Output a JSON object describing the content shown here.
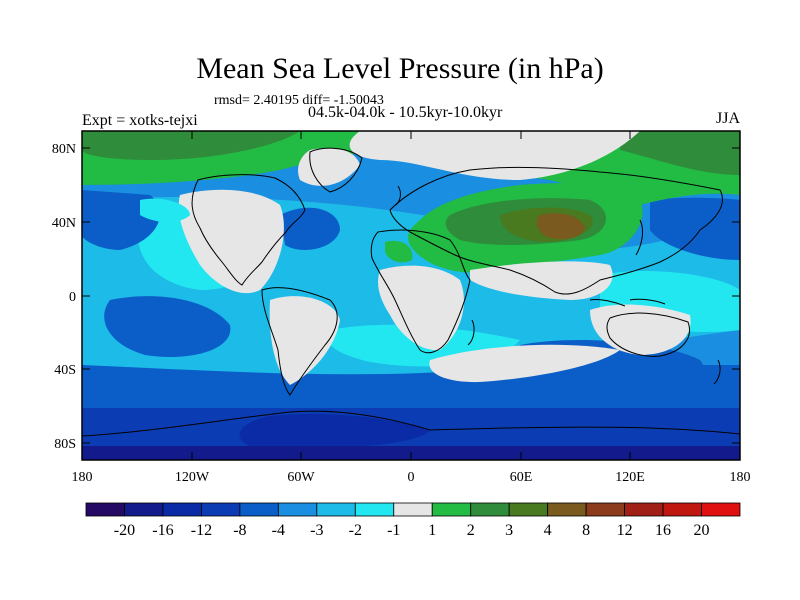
{
  "title": "Mean Sea Level Pressure (in hPa)",
  "stats_line": "rmsd= 2.40195 diff= -1.50043",
  "period_line": "04.5k-04.0k - 10.5kyr-10.0kyr",
  "expt_line": "Expt = xotks-tejxi",
  "season": "JJA",
  "lat_ticks": [
    "80N",
    "40N",
    "0",
    "40S",
    "80S"
  ],
  "lon_ticks": [
    "180",
    "120W",
    "60W",
    "0",
    "60E",
    "120E",
    "180"
  ],
  "colorbar": {
    "labels": [
      "-20",
      "-16",
      "-12",
      "-8",
      "-4",
      "-3",
      "-2",
      "-1",
      "1",
      "2",
      "3",
      "4",
      "8",
      "12",
      "16",
      "20"
    ],
    "colors": [
      "#240a64",
      "#131a8c",
      "#0a2aa6",
      "#0c3cb4",
      "#0b5ec8",
      "#1a8ee0",
      "#1dbbe8",
      "#22e6f0",
      "#e6e6e6",
      "#22bb44",
      "#2e8c3a",
      "#4a7a20",
      "#7a5a1e",
      "#8c3c1c",
      "#a02018",
      "#c01810",
      "#e01010"
    ]
  },
  "map_colors": {
    "neutral": "#e6e6e6",
    "cyan": "#22e6f0",
    "light_blue": "#1dbbe8",
    "mid_blue": "#1a8ee0",
    "blue": "#0b5ec8",
    "dark_blue": "#0c3cb4",
    "green": "#22bb44",
    "dark_green": "#2e8c3a",
    "olive": "#4a7a20",
    "brown": "#7a5a1e"
  }
}
